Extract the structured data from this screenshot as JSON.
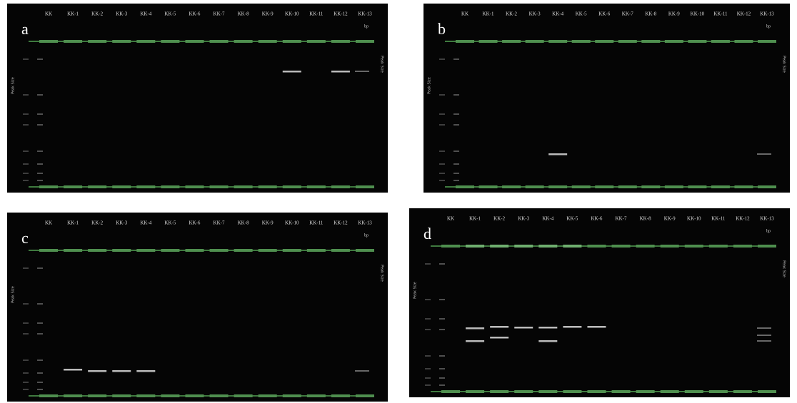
{
  "panel_letters": [
    "a",
    "b",
    "c",
    "d"
  ],
  "lane_labels": [
    "KK",
    "KK-1",
    "KK-2",
    "KK-3",
    "KK-4",
    "KK-5",
    "KK-6",
    "KK-7",
    "KK-8",
    "KK-9",
    "KK-10",
    "KK-11",
    "KK-12",
    "KK-13"
  ],
  "unit": "bp",
  "axis_label": "Peak Size"
}
